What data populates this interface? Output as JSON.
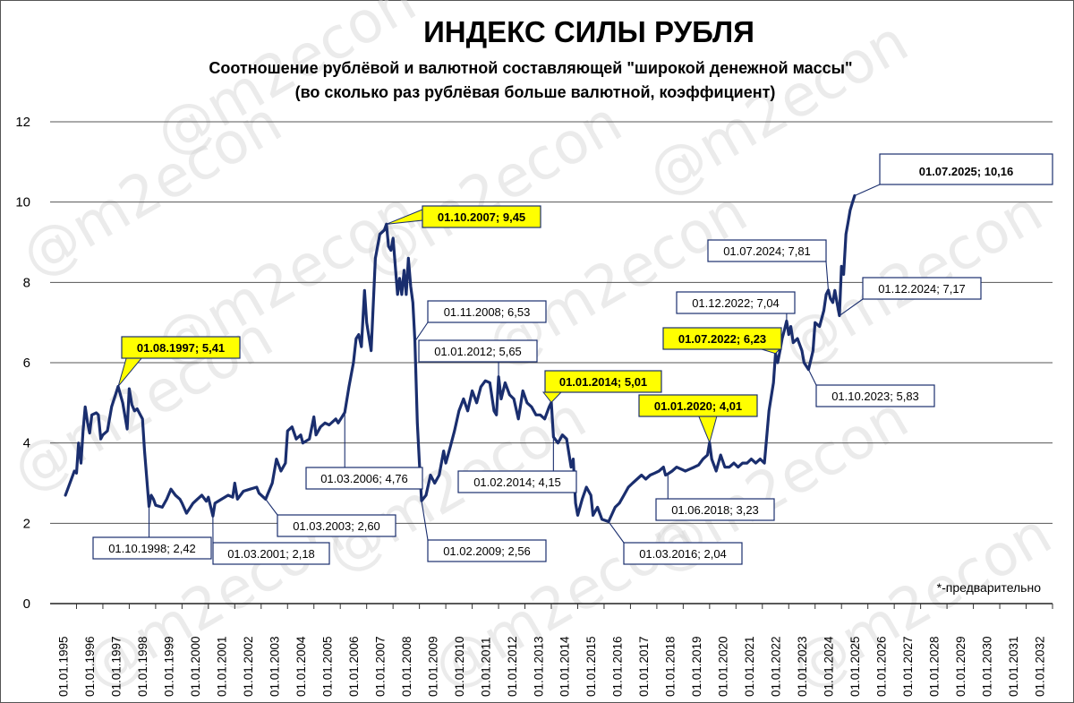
{
  "chart_data": {
    "type": "line",
    "title": "ИНДЕКС СИЛЫ РУБЛЯ",
    "subtitle_line1": "Соотношение рублёвой и валютной составляющей \"широкой денежной массы\"",
    "subtitle_line2": "(во сколько раз рублёвая больше валютной, коэффициент)",
    "note": "*-предварительно",
    "watermark": "@m2econ",
    "line_color": "#1a2e6e",
    "highlight_color": "#ffff00",
    "ylim": [
      0,
      12
    ],
    "yticks": [
      "0",
      "2",
      "4",
      "6",
      "8",
      "10",
      "12"
    ],
    "xlim": [
      1995.4,
      2033.0
    ],
    "xticks": [
      "01.01.1995",
      "01.01.1996",
      "01.01.1997",
      "01.01.1998",
      "01.01.1999",
      "01.01.2000",
      "01.01.2001",
      "01.01.2002",
      "01.01.2003",
      "01.01.2004",
      "01.01.2005",
      "01.01.2006",
      "01.01.2007",
      "01.01.2008",
      "01.01.2009",
      "01.01.2010",
      "01.01.2011",
      "01.01.2012",
      "01.01.2013",
      "01.01.2014",
      "01.01.2015",
      "01.01.2016",
      "01.01.2017",
      "01.01.2018",
      "01.01.2019",
      "01.01.2020",
      "01.01.2021",
      "01.01.2022",
      "01.01.2023",
      "01.01.2024",
      "01.01.2025",
      "01.01.2026",
      "01.01.2027",
      "01.01.2028",
      "01.01.2029",
      "01.01.2030",
      "01.01.2031",
      "01.01.2032"
    ],
    "series": [
      {
        "values": [
          [
            1995.58,
            2.7
          ],
          [
            1995.75,
            3.0
          ],
          [
            1995.92,
            3.3
          ],
          [
            1996.0,
            3.25
          ],
          [
            1996.08,
            4.0
          ],
          [
            1996.17,
            3.5
          ],
          [
            1996.25,
            4.3
          ],
          [
            1996.33,
            4.9
          ],
          [
            1996.42,
            4.5
          ],
          [
            1996.5,
            4.25
          ],
          [
            1996.58,
            4.7
          ],
          [
            1996.75,
            4.75
          ],
          [
            1996.83,
            4.7
          ],
          [
            1996.92,
            4.1
          ],
          [
            1997.0,
            4.2
          ],
          [
            1997.17,
            4.3
          ],
          [
            1997.33,
            4.9
          ],
          [
            1997.58,
            5.41
          ],
          [
            1997.75,
            5.0
          ],
          [
            1997.92,
            4.35
          ],
          [
            1998.0,
            5.35
          ],
          [
            1998.1,
            4.95
          ],
          [
            1998.2,
            4.8
          ],
          [
            1998.3,
            4.85
          ],
          [
            1998.42,
            4.7
          ],
          [
            1998.5,
            4.6
          ],
          [
            1998.58,
            3.8
          ],
          [
            1998.75,
            2.42
          ],
          [
            1998.83,
            2.7
          ],
          [
            1998.92,
            2.6
          ],
          [
            1999.0,
            2.45
          ],
          [
            1999.25,
            2.4
          ],
          [
            1999.42,
            2.6
          ],
          [
            1999.58,
            2.85
          ],
          [
            1999.75,
            2.7
          ],
          [
            1999.92,
            2.6
          ],
          [
            2000.0,
            2.5
          ],
          [
            2000.17,
            2.25
          ],
          [
            2000.42,
            2.5
          ],
          [
            2000.58,
            2.6
          ],
          [
            2000.75,
            2.7
          ],
          [
            2000.92,
            2.55
          ],
          [
            2001.0,
            2.65
          ],
          [
            2001.17,
            2.18
          ],
          [
            2001.25,
            2.5
          ],
          [
            2001.5,
            2.6
          ],
          [
            2001.75,
            2.7
          ],
          [
            2001.92,
            2.65
          ],
          [
            2002.0,
            3.0
          ],
          [
            2002.1,
            2.6
          ],
          [
            2002.33,
            2.8
          ],
          [
            2002.58,
            2.85
          ],
          [
            2002.83,
            2.9
          ],
          [
            2002.92,
            2.75
          ],
          [
            2003.17,
            2.6
          ],
          [
            2003.42,
            3.0
          ],
          [
            2003.58,
            3.6
          ],
          [
            2003.75,
            3.3
          ],
          [
            2003.92,
            3.5
          ],
          [
            2004.0,
            4.3
          ],
          [
            2004.17,
            4.4
          ],
          [
            2004.33,
            4.1
          ],
          [
            2004.5,
            4.2
          ],
          [
            2004.58,
            4.0
          ],
          [
            2004.83,
            4.1
          ],
          [
            2005.0,
            4.65
          ],
          [
            2005.08,
            4.2
          ],
          [
            2005.25,
            4.4
          ],
          [
            2005.42,
            4.5
          ],
          [
            2005.58,
            4.45
          ],
          [
            2005.83,
            4.6
          ],
          [
            2005.92,
            4.5
          ],
          [
            2006.17,
            4.76
          ],
          [
            2006.33,
            5.4
          ],
          [
            2006.5,
            6.0
          ],
          [
            2006.6,
            6.6
          ],
          [
            2006.7,
            6.7
          ],
          [
            2006.8,
            6.4
          ],
          [
            2006.92,
            7.8
          ],
          [
            2007.0,
            7.0
          ],
          [
            2007.17,
            6.3
          ],
          [
            2007.33,
            8.6
          ],
          [
            2007.5,
            9.2
          ],
          [
            2007.67,
            9.3
          ],
          [
            2007.75,
            9.45
          ],
          [
            2007.83,
            8.9
          ],
          [
            2007.92,
            8.8
          ],
          [
            2008.0,
            9.1
          ],
          [
            2008.17,
            7.7
          ],
          [
            2008.25,
            8.1
          ],
          [
            2008.33,
            7.7
          ],
          [
            2008.42,
            8.3
          ],
          [
            2008.5,
            7.7
          ],
          [
            2008.58,
            8.6
          ],
          [
            2008.67,
            7.9
          ],
          [
            2008.75,
            7.5
          ],
          [
            2008.83,
            6.53
          ],
          [
            2008.92,
            4.5
          ],
          [
            2009.0,
            3.5
          ],
          [
            2009.08,
            2.56
          ],
          [
            2009.25,
            2.7
          ],
          [
            2009.42,
            3.2
          ],
          [
            2009.58,
            3.0
          ],
          [
            2009.75,
            3.2
          ],
          [
            2009.92,
            3.8
          ],
          [
            2010.0,
            3.5
          ],
          [
            2010.17,
            3.9
          ],
          [
            2010.33,
            4.3
          ],
          [
            2010.5,
            4.8
          ],
          [
            2010.67,
            5.1
          ],
          [
            2010.83,
            4.8
          ],
          [
            2011.0,
            5.3
          ],
          [
            2011.17,
            5.0
          ],
          [
            2011.33,
            5.4
          ],
          [
            2011.5,
            5.55
          ],
          [
            2011.67,
            5.5
          ],
          [
            2011.83,
            4.8
          ],
          [
            2011.92,
            4.7
          ],
          [
            2012.0,
            5.65
          ],
          [
            2012.1,
            5.1
          ],
          [
            2012.25,
            5.5
          ],
          [
            2012.42,
            5.2
          ],
          [
            2012.58,
            5.1
          ],
          [
            2012.75,
            4.6
          ],
          [
            2012.92,
            5.3
          ],
          [
            2013.08,
            5.0
          ],
          [
            2013.25,
            4.9
          ],
          [
            2013.42,
            4.7
          ],
          [
            2013.58,
            4.7
          ],
          [
            2013.75,
            4.6
          ],
          [
            2013.92,
            4.9
          ],
          [
            2014.0,
            5.01
          ],
          [
            2014.08,
            4.15
          ],
          [
            2014.25,
            4.0
          ],
          [
            2014.42,
            4.2
          ],
          [
            2014.58,
            4.1
          ],
          [
            2014.75,
            3.4
          ],
          [
            2014.83,
            3.6
          ],
          [
            2014.92,
            2.5
          ],
          [
            2015.0,
            2.2
          ],
          [
            2015.17,
            2.6
          ],
          [
            2015.33,
            2.9
          ],
          [
            2015.5,
            2.7
          ],
          [
            2015.58,
            2.2
          ],
          [
            2015.75,
            2.4
          ],
          [
            2015.92,
            2.1
          ],
          [
            2016.17,
            2.04
          ],
          [
            2016.42,
            2.4
          ],
          [
            2016.58,
            2.5
          ],
          [
            2016.75,
            2.7
          ],
          [
            2016.92,
            2.9
          ],
          [
            2017.08,
            3.0
          ],
          [
            2017.25,
            3.1
          ],
          [
            2017.42,
            3.2
          ],
          [
            2017.58,
            3.1
          ],
          [
            2017.75,
            3.2
          ],
          [
            2017.92,
            3.25
          ],
          [
            2018.08,
            3.3
          ],
          [
            2018.25,
            3.4
          ],
          [
            2018.33,
            3.2
          ],
          [
            2018.42,
            3.23
          ],
          [
            2018.58,
            3.3
          ],
          [
            2018.75,
            3.4
          ],
          [
            2018.92,
            3.35
          ],
          [
            2019.08,
            3.3
          ],
          [
            2019.25,
            3.35
          ],
          [
            2019.42,
            3.4
          ],
          [
            2019.58,
            3.45
          ],
          [
            2019.75,
            3.6
          ],
          [
            2019.92,
            3.7
          ],
          [
            2020.0,
            4.01
          ],
          [
            2020.08,
            3.6
          ],
          [
            2020.25,
            3.3
          ],
          [
            2020.42,
            3.7
          ],
          [
            2020.58,
            3.4
          ],
          [
            2020.75,
            3.4
          ],
          [
            2020.92,
            3.5
          ],
          [
            2021.08,
            3.4
          ],
          [
            2021.25,
            3.5
          ],
          [
            2021.42,
            3.5
          ],
          [
            2021.58,
            3.6
          ],
          [
            2021.75,
            3.5
          ],
          [
            2021.92,
            3.6
          ],
          [
            2022.08,
            3.5
          ],
          [
            2022.25,
            4.8
          ],
          [
            2022.42,
            5.5
          ],
          [
            2022.5,
            6.23
          ],
          [
            2022.58,
            6.0
          ],
          [
            2022.67,
            6.3
          ],
          [
            2022.75,
            6.6
          ],
          [
            2022.83,
            6.8
          ],
          [
            2022.92,
            7.04
          ],
          [
            2023.0,
            6.7
          ],
          [
            2023.08,
            6.9
          ],
          [
            2023.17,
            6.5
          ],
          [
            2023.33,
            6.6
          ],
          [
            2023.5,
            6.3
          ],
          [
            2023.58,
            6.0
          ],
          [
            2023.75,
            5.83
          ],
          [
            2023.92,
            6.3
          ],
          [
            2024.0,
            7.0
          ],
          [
            2024.17,
            6.9
          ],
          [
            2024.33,
            7.3
          ],
          [
            2024.42,
            7.7
          ],
          [
            2024.5,
            7.81
          ],
          [
            2024.58,
            7.6
          ],
          [
            2024.67,
            7.5
          ],
          [
            2024.75,
            7.8
          ],
          [
            2024.83,
            7.5
          ],
          [
            2024.92,
            7.17
          ],
          [
            2025.0,
            8.4
          ],
          [
            2025.08,
            8.2
          ],
          [
            2025.17,
            9.2
          ],
          [
            2025.25,
            9.5
          ],
          [
            2025.33,
            9.8
          ],
          [
            2025.42,
            10.0
          ],
          [
            2025.5,
            10.16
          ]
        ]
      }
    ],
    "annotations": [
      {
        "label": "01.08.1997;  5,41",
        "x": 1997.58,
        "y": 5.41,
        "highlight": true
      },
      {
        "label": "01.10.1998;  2,42",
        "x": 1998.75,
        "y": 2.42,
        "highlight": false
      },
      {
        "label": "01.03.2001;  2,18",
        "x": 2001.17,
        "y": 2.18,
        "highlight": false
      },
      {
        "label": "01.03.2003;  2,60",
        "x": 2003.17,
        "y": 2.6,
        "highlight": false
      },
      {
        "label": "01.03.2006;  4,76",
        "x": 2006.17,
        "y": 4.76,
        "highlight": false
      },
      {
        "label": "01.10.2007;  9,45",
        "x": 2007.75,
        "y": 9.45,
        "highlight": true
      },
      {
        "label": "01.11.2008;  6,53",
        "x": 2008.83,
        "y": 6.53,
        "highlight": false
      },
      {
        "label": "01.02.2009;  2,56",
        "x": 2009.08,
        "y": 2.56,
        "highlight": false
      },
      {
        "label": "01.01.2012;  5,65",
        "x": 2012.0,
        "y": 5.65,
        "highlight": false
      },
      {
        "label": "01.01.2014;  5,01",
        "x": 2014.0,
        "y": 5.01,
        "highlight": true
      },
      {
        "label": "01.02.2014;  4,15",
        "x": 2014.08,
        "y": 4.15,
        "highlight": false
      },
      {
        "label": "01.03.2016;  2,04",
        "x": 2016.17,
        "y": 2.04,
        "highlight": false
      },
      {
        "label": "01.06.2018;  3,23",
        "x": 2018.42,
        "y": 3.23,
        "highlight": false
      },
      {
        "label": "01.01.2020;  4,01",
        "x": 2020.0,
        "y": 4.01,
        "highlight": true
      },
      {
        "label": "01.07.2022;  6,23",
        "x": 2022.5,
        "y": 6.23,
        "highlight": true
      },
      {
        "label": "01.12.2022;  7,04",
        "x": 2022.92,
        "y": 7.04,
        "highlight": false
      },
      {
        "label": "01.10.2023;  5,83",
        "x": 2023.75,
        "y": 5.83,
        "highlight": false
      },
      {
        "label": "01.07.2024;  7,81",
        "x": 2024.5,
        "y": 7.81,
        "highlight": false
      },
      {
        "label": "01.12.2024;  7,17",
        "x": 2024.92,
        "y": 7.17,
        "highlight": false
      },
      {
        "label": "01.07.2025;   10,16",
        "x": 2025.5,
        "y": 10.16,
        "highlight": false,
        "large": true
      }
    ],
    "grid": true
  }
}
